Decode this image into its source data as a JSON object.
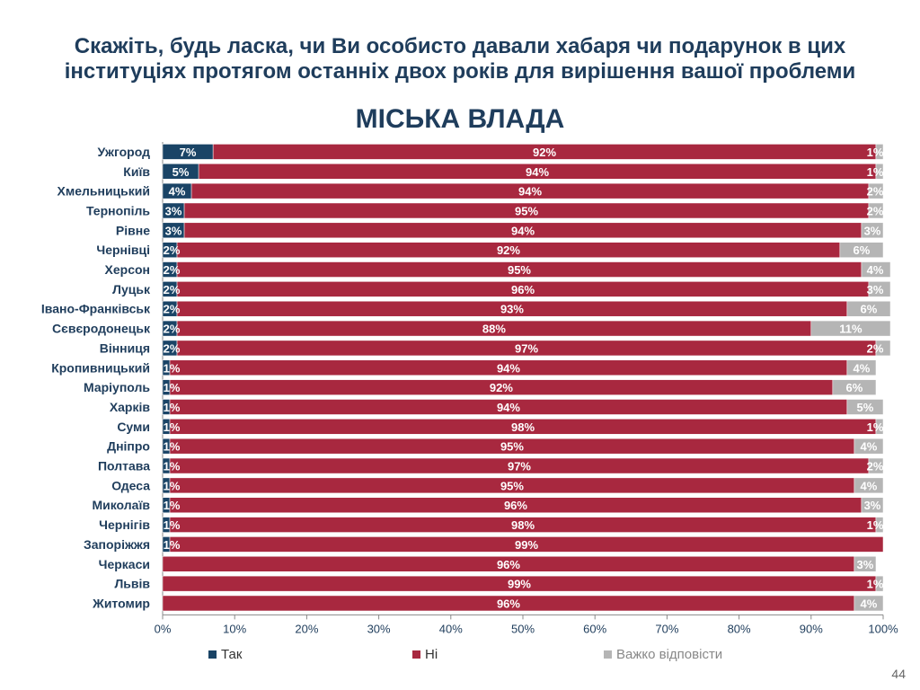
{
  "header": {
    "title_line1": "Скажіть, будь ласка, чи Ви особисто давали хабаря чи подарунок в цих",
    "title_line2": "інституціях протягом останніх двох років для вирішення вашої проблеми",
    "subtitle": "МІСЬКА ВЛАДА"
  },
  "colors": {
    "tak": "#1a4466",
    "ni": "#a8283f",
    "vazhko": "#b5b5b5",
    "axis_text": "#1f3d5c"
  },
  "chart_data": {
    "type": "bar",
    "orientation": "horizontal",
    "stacked": true,
    "categories": [
      "Ужгород",
      "Київ",
      "Хмельницький",
      "Тернопіль",
      "Рівне",
      "Чернівці",
      "Херсон",
      "Луцьк",
      "Івано-Франківськ",
      "Сєвєродонецьк",
      "Вінниця",
      "Кропивницький",
      "Маріуполь",
      "Харків",
      "Суми",
      "Дніпро",
      "Полтава",
      "Одеса",
      "Миколаїв",
      "Чернігів",
      "Запоріжжя",
      "Черкаси",
      "Львів",
      "Житомир"
    ],
    "series": [
      {
        "name": "Так",
        "values": [
          7,
          5,
          4,
          3,
          3,
          2,
          2,
          2,
          2,
          2,
          2,
          1,
          1,
          1,
          1,
          1,
          1,
          1,
          1,
          1,
          1,
          0,
          0,
          0
        ],
        "labels": [
          "7%",
          "5%",
          "4%",
          "3%",
          "3%",
          "2%",
          "2%",
          "2%",
          "2%",
          "2%",
          "2%",
          "1%",
          "1%",
          "1%",
          "1%",
          "1%",
          "1%",
          "1%",
          "1%",
          "1%",
          "1%",
          "",
          "",
          ""
        ]
      },
      {
        "name": "Ні",
        "values": [
          92,
          94,
          94,
          95,
          94,
          92,
          95,
          96,
          93,
          88,
          97,
          94,
          92,
          94,
          98,
          95,
          97,
          95,
          96,
          98,
          99,
          96,
          99,
          96
        ],
        "labels": [
          "92%",
          "94%",
          "94%",
          "95%",
          "94%",
          "92%",
          "95%",
          "96%",
          "93%",
          "88%",
          "97%",
          "94%",
          "92%",
          "94%",
          "98%",
          "95%",
          "97%",
          "95%",
          "96%",
          "98%",
          "99%",
          "96%",
          "99%",
          "96%"
        ]
      },
      {
        "name": "Важко відповісти",
        "values": [
          1,
          1,
          2,
          2,
          3,
          6,
          4,
          3,
          6,
          11,
          2,
          4,
          6,
          5,
          1,
          4,
          2,
          4,
          3,
          1,
          0,
          3,
          1,
          4
        ],
        "labels": [
          "1%",
          "1%",
          "2%",
          "2%",
          "3%",
          "6%",
          "4%",
          "3%",
          "6%",
          "11%",
          "2%",
          "4%",
          "6%",
          "5%",
          "1%",
          "4%",
          "2%",
          "4%",
          "3%",
          "1%",
          "",
          "3%",
          "1%",
          "4%"
        ]
      }
    ],
    "xlim": [
      0,
      100
    ],
    "xticks": [
      "0%",
      "10%",
      "20%",
      "30%",
      "40%",
      "50%",
      "60%",
      "70%",
      "80%",
      "90%",
      "100%"
    ],
    "legend_position": "bottom"
  },
  "slide_number": "44"
}
